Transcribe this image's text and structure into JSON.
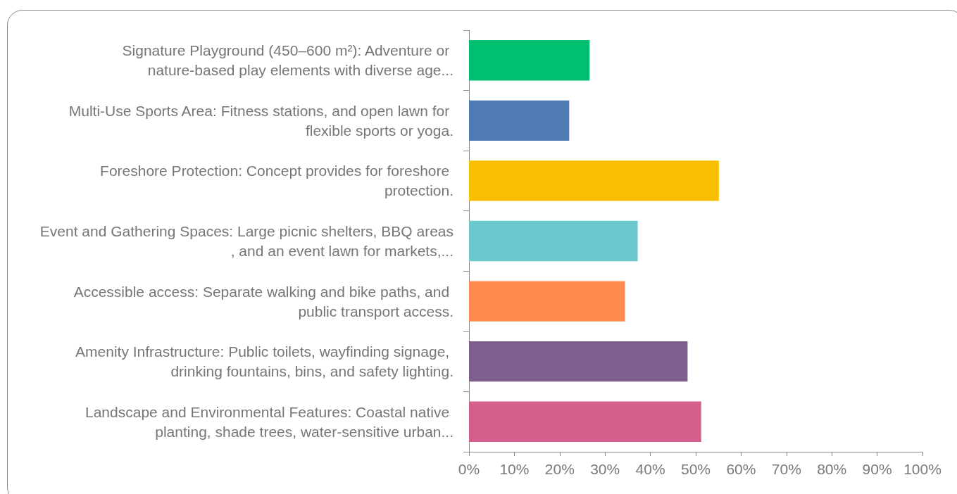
{
  "chart_data": {
    "type": "bar",
    "orientation": "horizontal",
    "categories": [
      "Signature Playground (450–600 m²): Adventure or nature-based play elements with diverse age...",
      "Multi-Use Sports Area: Fitness stations, and open lawn for flexible sports or yoga.",
      "Foreshore Protection: Concept provides for foreshore protection.",
      "Event and Gathering Spaces: Large picnic shelters, BBQ areas, and an event lawn for markets,...",
      "Accessible access: Separate walking and bike paths, and public transport access.",
      "Amenity Infrastructure: Public toilets, wayfinding signage, drinking fountains, bins, and safety lighting.",
      "Landscape and Environmental Features: Coastal native planting, shade trees, water-sensitive urban..."
    ],
    "values": [
      26.6,
      22.1,
      55.1,
      37.2,
      34.4,
      48.2,
      51.2
    ],
    "colors": [
      "#00bf6f",
      "#4e7bb4",
      "#f8bf00",
      "#6bc8cc",
      "#ff8b50",
      "#7d5e8f",
      "#d45f8d"
    ],
    "xlim": [
      0,
      100
    ],
    "xticks": [
      {
        "value": 0,
        "label": "0%"
      },
      {
        "value": 10,
        "label": "10%"
      },
      {
        "value": 20,
        "label": "20%"
      },
      {
        "value": 30,
        "label": "30%"
      },
      {
        "value": 40,
        "label": "40%"
      },
      {
        "value": 50,
        "label": "50%"
      },
      {
        "value": 60,
        "label": "60%"
      },
      {
        "value": 70,
        "label": "70%"
      },
      {
        "value": 80,
        "label": "80%"
      },
      {
        "value": 90,
        "label": "90%"
      },
      {
        "value": 100,
        "label": "100%"
      }
    ],
    "grid": false
  }
}
